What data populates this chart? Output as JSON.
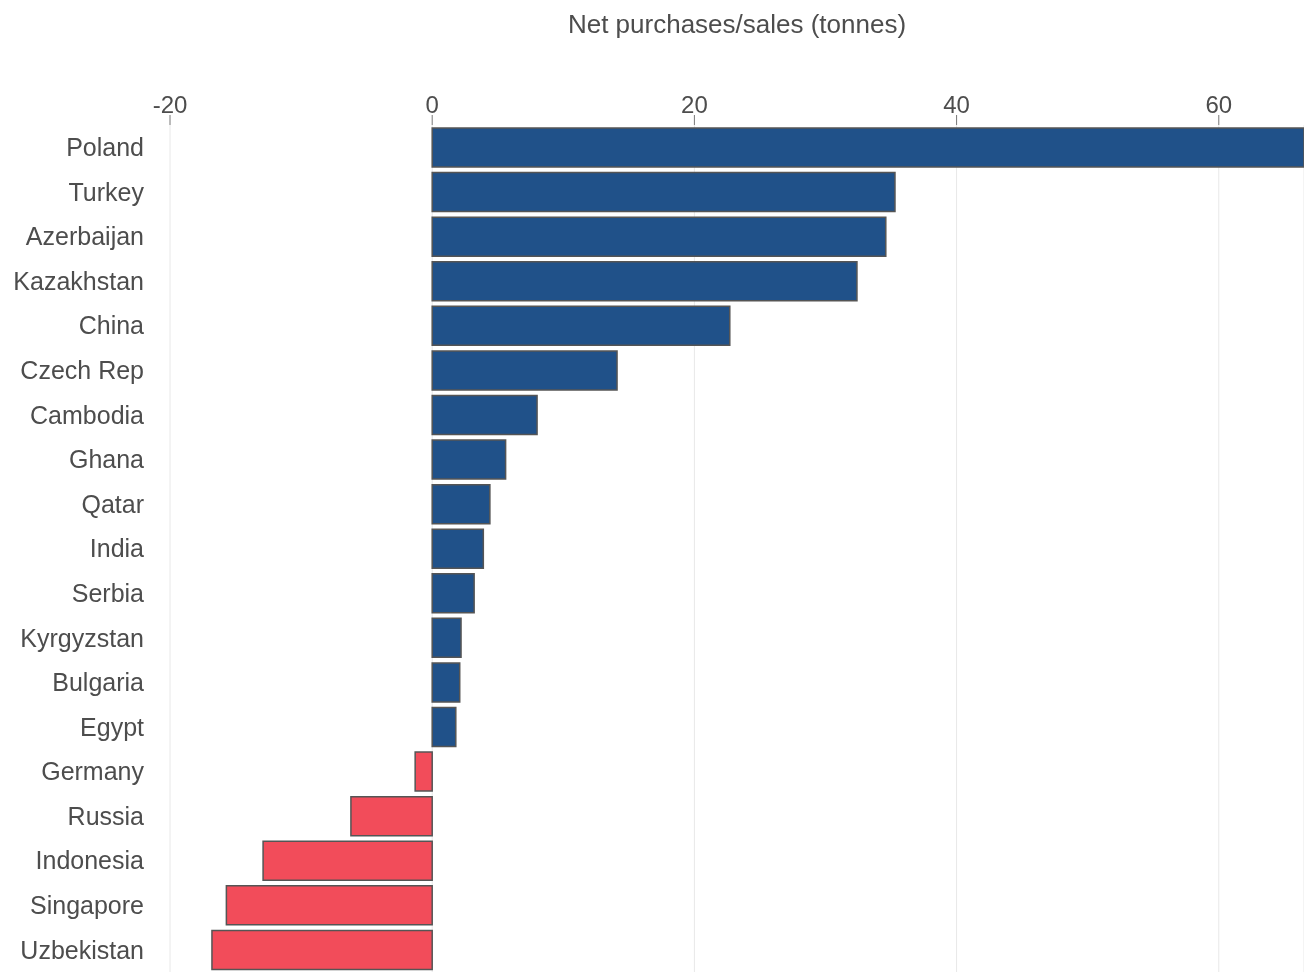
{
  "chart_data": {
    "type": "bar",
    "orientation": "horizontal",
    "xlabel": "Net purchases/sales (tonnes)",
    "categories": [
      "Poland",
      "Turkey",
      "Azerbaijan",
      "Kazakhstan",
      "China",
      "Czech Rep",
      "Cambodia",
      "Ghana",
      "Qatar",
      "India",
      "Serbia",
      "Kyrgyzstan",
      "Bulgaria",
      "Egypt",
      "Germany",
      "Russia",
      "Indonesia",
      "Singapore",
      "Uzbekistan"
    ],
    "values": [
      66.5,
      35.3,
      34.6,
      32.4,
      22.7,
      14.1,
      8.0,
      5.6,
      4.4,
      3.9,
      3.2,
      2.2,
      2.1,
      1.8,
      -1.3,
      -6.2,
      -12.9,
      -15.7,
      -16.8
    ],
    "colors": [
      "#205189",
      "#205189",
      "#205189",
      "#205189",
      "#205189",
      "#205189",
      "#205189",
      "#205189",
      "#205189",
      "#205189",
      "#205189",
      "#205189",
      "#205189",
      "#205189",
      "#f24c5a",
      "#f24c5a",
      "#f24c5a",
      "#f24c5a",
      "#f24c5a"
    ],
    "xlim": [
      -20,
      66.5
    ],
    "xticks": [
      -20,
      0,
      20,
      40,
      60
    ],
    "grid": "x"
  }
}
